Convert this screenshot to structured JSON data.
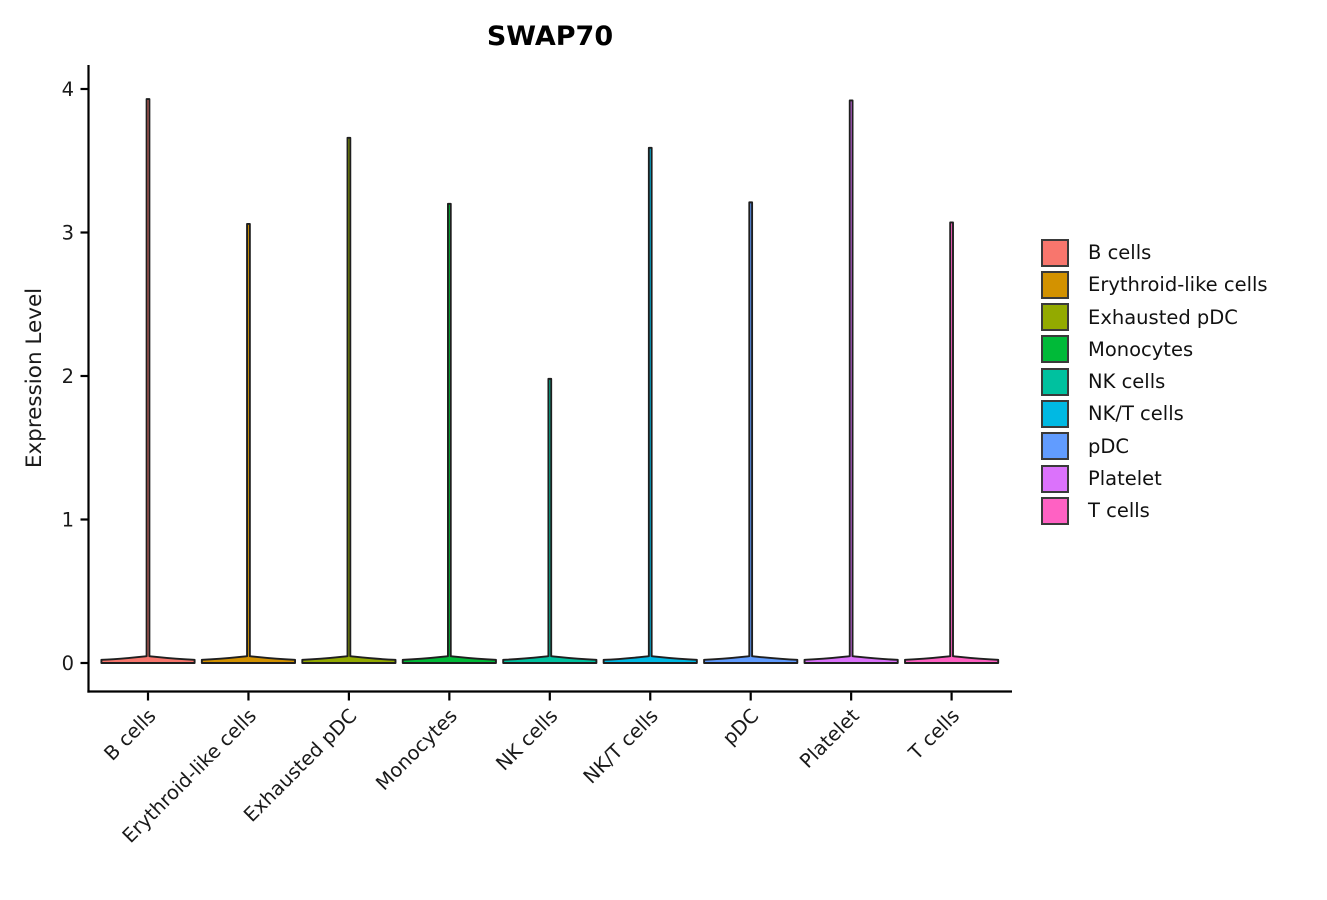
{
  "chart_data": {
    "type": "violin",
    "title": "SWAP70",
    "xlabel": "",
    "ylabel": "Expression Level",
    "ylim": [
      0,
      4.17
    ],
    "yticks": [
      0,
      1,
      2,
      3,
      4
    ],
    "grid": false,
    "legend_position": "right",
    "categories": [
      "B cells",
      "Erythroid-like cells",
      "Exhausted pDC",
      "Monocytes",
      "NK cells",
      "NK/T cells",
      "pDC",
      "Platelet",
      "T cells"
    ],
    "series": [
      {
        "name": "B cells",
        "color": "#F8766D",
        "max_expression": 3.93,
        "density_mode": 0
      },
      {
        "name": "Erythroid-like cells",
        "color": "#D39200",
        "max_expression": 3.06,
        "density_mode": 0
      },
      {
        "name": "Exhausted pDC",
        "color": "#93AA00",
        "max_expression": 3.66,
        "density_mode": 0
      },
      {
        "name": "Monocytes",
        "color": "#00BA38",
        "max_expression": 3.2,
        "density_mode": 0
      },
      {
        "name": "NK cells",
        "color": "#00C19F",
        "max_expression": 1.98,
        "density_mode": 0
      },
      {
        "name": "NK/T cells",
        "color": "#00B9E3",
        "max_expression": 3.59,
        "density_mode": 0
      },
      {
        "name": "pDC",
        "color": "#619CFF",
        "max_expression": 3.21,
        "density_mode": 0
      },
      {
        "name": "Platelet",
        "color": "#DB72FB",
        "max_expression": 3.92,
        "density_mode": 0
      },
      {
        "name": "T cells",
        "color": "#FF61C3",
        "max_expression": 3.07,
        "density_mode": 0
      }
    ],
    "legend": {
      "entries": [
        {
          "label": "B cells",
          "color": "#F8766D"
        },
        {
          "label": "Erythroid-like cells",
          "color": "#D39200"
        },
        {
          "label": "Exhausted pDC",
          "color": "#93AA00"
        },
        {
          "label": "Monocytes",
          "color": "#00BA38"
        },
        {
          "label": "NK cells",
          "color": "#00C19F"
        },
        {
          "label": "NK/T cells",
          "color": "#00B9E3"
        },
        {
          "label": "pDC",
          "color": "#619CFF"
        },
        {
          "label": "Platelet",
          "color": "#DB72FB"
        },
        {
          "label": "T cells",
          "color": "#FF61C3"
        }
      ]
    },
    "style": {
      "axis_color": "#000000",
      "violin_outline_color": "#1f1f1f",
      "tick_label_color": "#1a1a1a",
      "note": "Seurat-style violin plot: density mass concentrated at 0, thin spike rising to max expression per cell type"
    }
  }
}
